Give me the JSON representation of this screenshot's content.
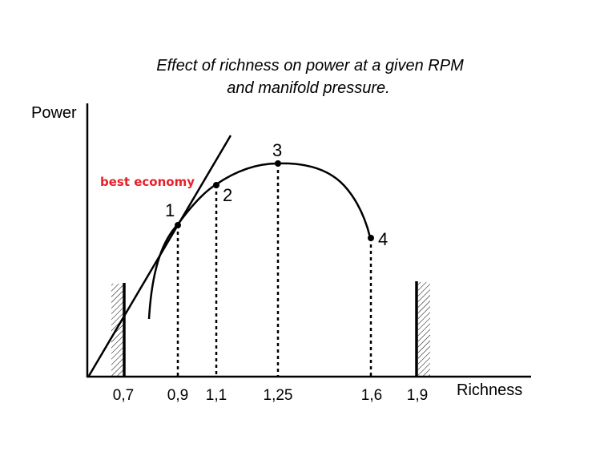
{
  "title_line1": "Effect of richness on power at a given RPM",
  "title_line2": "and manifold pressure.",
  "y_axis_label": "Power",
  "x_axis_label": "Richness",
  "annotation": "best economy",
  "ticks": [
    "0,7",
    "0,9",
    "1,1",
    "1,25",
    "1,6",
    "1,9"
  ],
  "points": [
    "1",
    "2",
    "3",
    "4"
  ]
}
